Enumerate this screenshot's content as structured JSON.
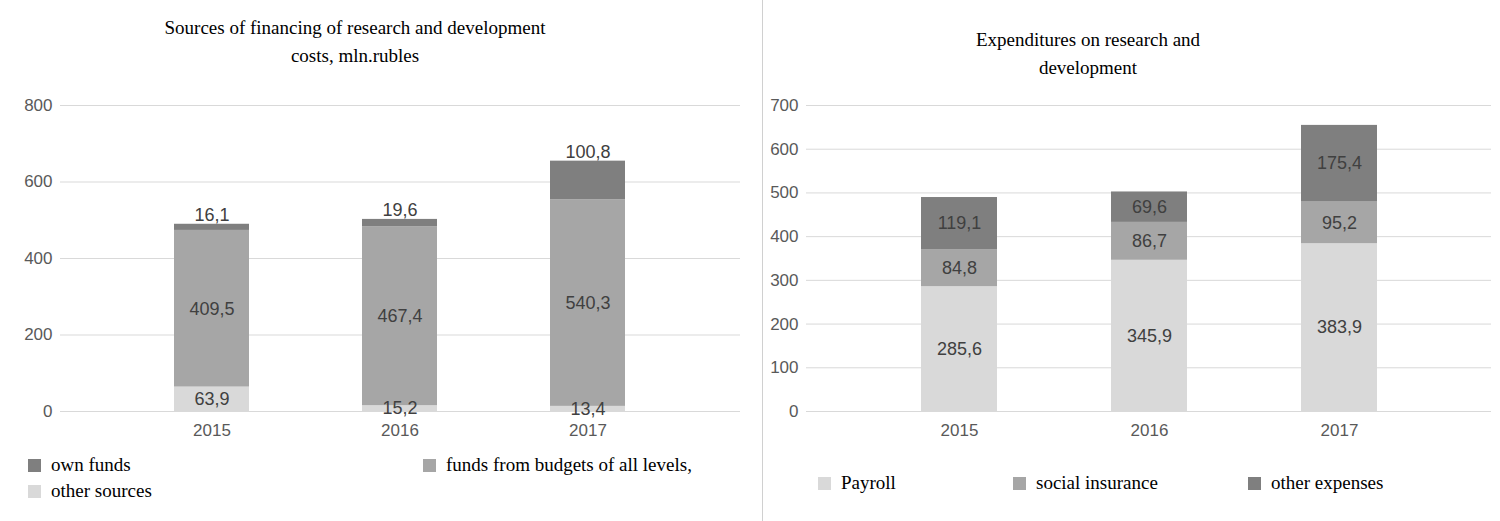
{
  "chart_data": [
    {
      "type": "bar",
      "stacked": true,
      "data_labels": true,
      "grid": true,
      "legend": "bottom",
      "title": "Sources of financing of research and development costs, mln.rubles",
      "categories": [
        "2015",
        "2016",
        "2017"
      ],
      "ylim": [
        0,
        800
      ],
      "yticks": [
        0,
        200,
        400,
        600,
        800
      ],
      "series": [
        {
          "name": "other sources",
          "color": "#d9d9d9",
          "values": [
            63.9,
            15.2,
            13.4
          ],
          "value_labels": [
            "63,9",
            "15,2",
            "13,4"
          ]
        },
        {
          "name": "funds from budgets of all levels,",
          "color": "#a6a6a6",
          "values": [
            409.5,
            467.4,
            540.3
          ],
          "value_labels": [
            "409,5",
            "467,4",
            "540,3"
          ]
        },
        {
          "name": "own funds",
          "color": "#7f7f7f",
          "values": [
            16.1,
            19.6,
            100.8
          ],
          "value_labels": [
            "16,1",
            "19,6",
            "100,8"
          ]
        }
      ]
    },
    {
      "type": "bar",
      "stacked": true,
      "data_labels": true,
      "grid": true,
      "legend": "bottom",
      "title": "Expenditures on research and development",
      "categories": [
        "2015",
        "2016",
        "2017"
      ],
      "ylim": [
        0,
        700
      ],
      "yticks": [
        0,
        100,
        200,
        300,
        400,
        500,
        600,
        700
      ],
      "series": [
        {
          "name": "Payroll",
          "color": "#d9d9d9",
          "values": [
            285.6,
            345.9,
            383.9
          ],
          "value_labels": [
            "285,6",
            "345,9",
            "383,9"
          ]
        },
        {
          "name": "social insurance",
          "color": "#a6a6a6",
          "values": [
            84.8,
            86.7,
            95.2
          ],
          "value_labels": [
            "84,8",
            "86,7",
            "95,2"
          ]
        },
        {
          "name": "other expenses",
          "color": "#7f7f7f",
          "values": [
            119.1,
            69.6,
            175.4
          ],
          "value_labels": [
            "119,1",
            "69,6",
            "175,4"
          ]
        }
      ]
    }
  ]
}
